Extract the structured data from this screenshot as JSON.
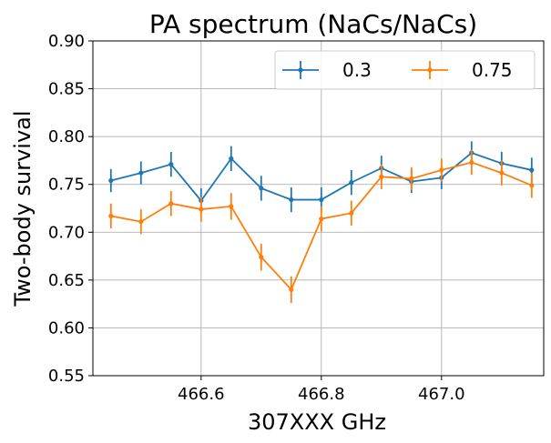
{
  "chart_data": {
    "type": "line",
    "title": "PA spectrum (NaCs/NaCs)",
    "xlabel": "307XXX GHz",
    "ylabel": "Two-body survival",
    "xlim": [
      466.42,
      467.17
    ],
    "ylim": [
      0.55,
      0.9
    ],
    "x_ticks": [
      466.6,
      466.8,
      467.0
    ],
    "x_tick_labels": [
      "466.6",
      "466.8",
      "467.0"
    ],
    "y_ticks": [
      0.55,
      0.6,
      0.65,
      0.7,
      0.75,
      0.8,
      0.85,
      0.9
    ],
    "y_tick_labels": [
      "0.55",
      "0.60",
      "0.65",
      "0.70",
      "0.75",
      "0.80",
      "0.85",
      "0.90"
    ],
    "grid": true,
    "legend_position": "top-right",
    "x": [
      466.45,
      466.5,
      466.55,
      466.6,
      466.65,
      466.7,
      466.75,
      466.8,
      466.85,
      466.9,
      466.95,
      467.0,
      467.05,
      467.1,
      467.15
    ],
    "series": [
      {
        "name": "0.3",
        "color": "#1f77b4",
        "values": [
          0.754,
          0.762,
          0.771,
          0.733,
          0.777,
          0.746,
          0.734,
          0.734,
          0.752,
          0.767,
          0.753,
          0.757,
          0.783,
          0.772,
          0.765
        ],
        "errors": [
          0.012,
          0.012,
          0.013,
          0.013,
          0.013,
          0.013,
          0.013,
          0.013,
          0.013,
          0.013,
          0.012,
          0.012,
          0.012,
          0.012,
          0.013
        ]
      },
      {
        "name": "0.75",
        "color": "#ff7f0e",
        "values": [
          0.717,
          0.711,
          0.73,
          0.724,
          0.727,
          0.674,
          0.64,
          0.714,
          0.72,
          0.758,
          0.756,
          0.765,
          0.773,
          0.762,
          0.749
        ],
        "errors": [
          0.013,
          0.013,
          0.013,
          0.013,
          0.014,
          0.014,
          0.014,
          0.013,
          0.013,
          0.013,
          0.012,
          0.012,
          0.013,
          0.013,
          0.013
        ]
      }
    ]
  }
}
